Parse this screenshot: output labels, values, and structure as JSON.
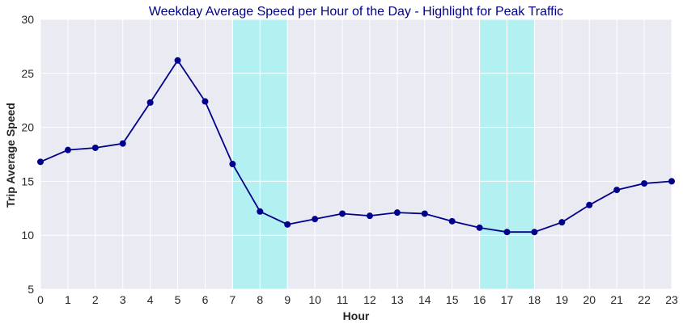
{
  "chart_data": {
    "type": "line",
    "title": "Weekday Average Speed per Hour of the Day - Highlight for Peak Traffic",
    "xlabel": "Hour",
    "ylabel": "Trip Average Speed",
    "xlim": [
      0,
      23
    ],
    "ylim": [
      5,
      30
    ],
    "x_ticks": [
      0,
      1,
      2,
      3,
      4,
      5,
      6,
      7,
      8,
      9,
      10,
      11,
      12,
      13,
      14,
      15,
      16,
      17,
      18,
      19,
      20,
      21,
      22,
      23
    ],
    "y_ticks": [
      5,
      10,
      15,
      20,
      25,
      30
    ],
    "grid": true,
    "x": [
      0,
      1,
      2,
      3,
      4,
      5,
      6,
      7,
      8,
      9,
      10,
      11,
      12,
      13,
      14,
      15,
      16,
      17,
      18,
      19,
      20,
      21,
      22,
      23
    ],
    "series": [
      {
        "values": [
          16.8,
          17.9,
          18.1,
          18.5,
          22.3,
          26.2,
          22.4,
          16.6,
          12.2,
          11.0,
          11.5,
          12.0,
          11.8,
          12.1,
          12.0,
          11.3,
          10.7,
          10.3,
          10.3,
          11.2,
          12.8,
          14.2,
          14.8,
          15.0
        ],
        "color": "#00008b"
      }
    ],
    "highlights": [
      {
        "from": 7,
        "to": 9,
        "color": "#b2f0f2"
      },
      {
        "from": 16,
        "to": 18,
        "color": "#b2f0f2"
      }
    ],
    "colors": {
      "plot_bg": "#eaeaf2",
      "grid": "#ffffff"
    }
  }
}
